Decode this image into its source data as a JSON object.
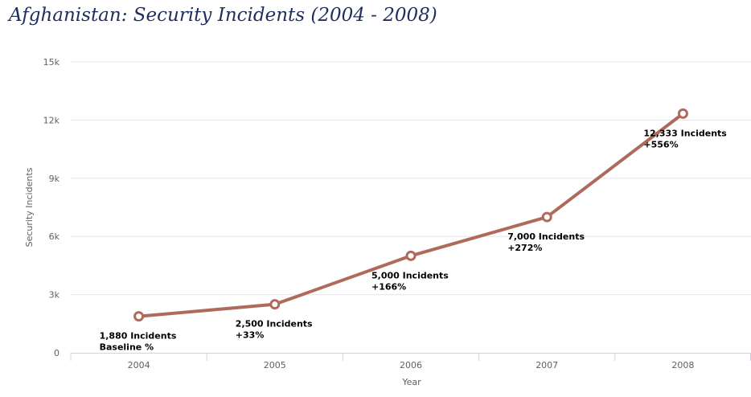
{
  "chart_data": {
    "type": "line",
    "title": "Afghanistan: Security Incidents (2004 - 2008)",
    "xlabel": "Year",
    "ylabel": "Security Incidents",
    "categories": [
      "2004",
      "2005",
      "2006",
      "2007",
      "2008"
    ],
    "ylim": [
      0,
      15000
    ],
    "yticks": [
      0,
      3000,
      6000,
      9000,
      12000,
      15000
    ],
    "ytick_labels": [
      "0",
      "3k",
      "6k",
      "9k",
      "12k",
      "15k"
    ],
    "grid": true,
    "series": [
      {
        "values": [
          1880,
          2500,
          5000,
          7000,
          12333
        ]
      }
    ],
    "data_labels": [
      {
        "line1": "1,880 Incidents",
        "line2": "Baseline %"
      },
      {
        "line1": "2,500 Incidents",
        "line2": "+33%"
      },
      {
        "line1": "5,000 Incidents",
        "line2": "+166%"
      },
      {
        "line1": "7,000 Incidents",
        "line2": "+272%"
      },
      {
        "line1": "12,333 Incidents",
        "line2": "+556%"
      }
    ],
    "colors": {
      "line": "#b06a5c",
      "grid": "#e6e6e6",
      "axis": "#ccd6eb",
      "title": "#1f2e5c"
    }
  }
}
